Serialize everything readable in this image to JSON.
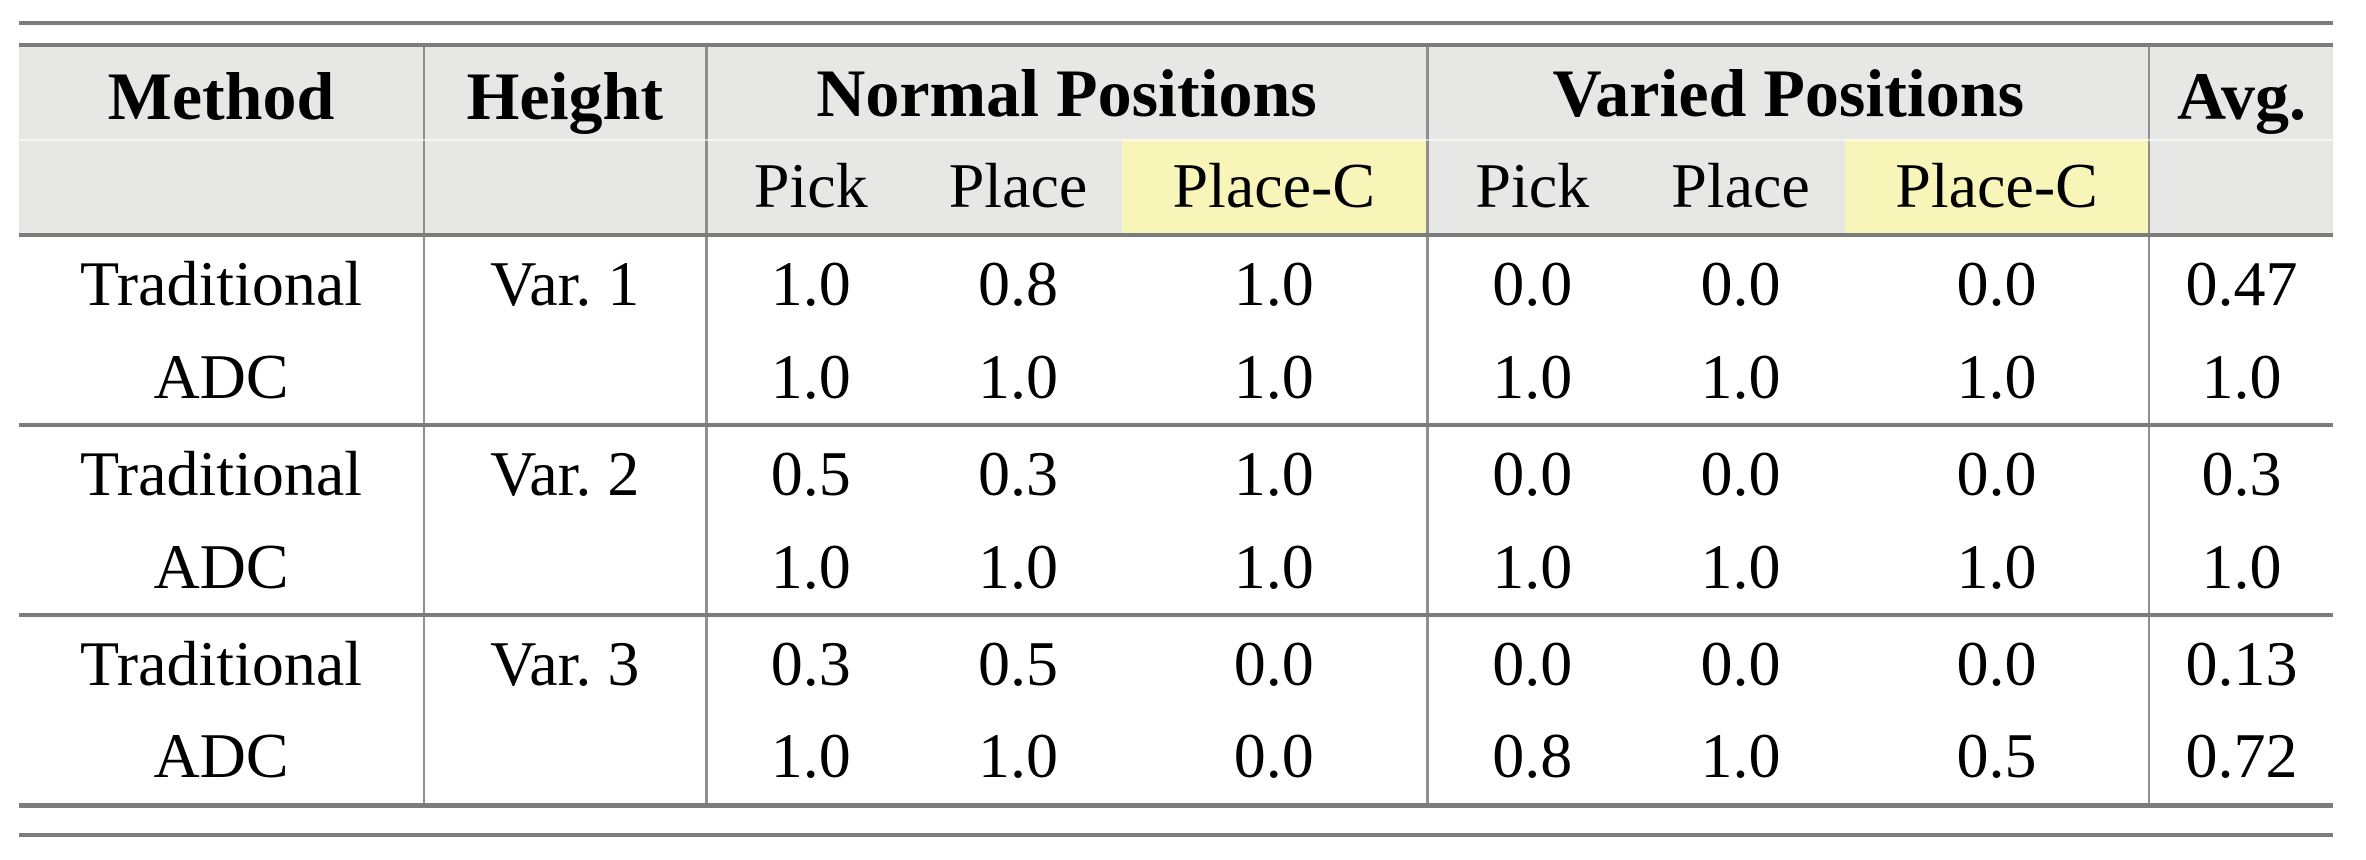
{
  "colors": {
    "header_bg": "#e7e7e6",
    "highlight_bg": "#f8f5b9",
    "rule": "#8f8f8f",
    "thick_rule": "#7c7c7c",
    "text": "#000000"
  },
  "table": {
    "headers": {
      "method": "Method",
      "height": "Height",
      "normal_group": "Normal Positions",
      "varied_group": "Varied Positions",
      "avg": "Avg.",
      "pick": "Pick",
      "place": "Place",
      "place_c": "Place-C"
    },
    "rows": [
      {
        "method": "Traditional",
        "height": "Var. 1",
        "normal": [
          "1.0",
          "0.8",
          "1.0"
        ],
        "varied": [
          "0.0",
          "0.0",
          "0.0"
        ],
        "avg": "0.47"
      },
      {
        "method": "ADC",
        "height": "",
        "normal": [
          "1.0",
          "1.0",
          "1.0"
        ],
        "varied": [
          "1.0",
          "1.0",
          "1.0"
        ],
        "avg": "1.0"
      },
      {
        "method": "Traditional",
        "height": "Var. 2",
        "normal": [
          "0.5",
          "0.3",
          "1.0"
        ],
        "varied": [
          "0.0",
          "0.0",
          "0.0"
        ],
        "avg": "0.3"
      },
      {
        "method": "ADC",
        "height": "",
        "normal": [
          "1.0",
          "1.0",
          "1.0"
        ],
        "varied": [
          "1.0",
          "1.0",
          "1.0"
        ],
        "avg": "1.0"
      },
      {
        "method": "Traditional",
        "height": "Var. 3",
        "normal": [
          "0.3",
          "0.5",
          "0.0"
        ],
        "varied": [
          "0.0",
          "0.0",
          "0.0"
        ],
        "avg": "0.13"
      },
      {
        "method": "ADC",
        "height": "",
        "normal": [
          "1.0",
          "1.0",
          "0.0"
        ],
        "varied": [
          "0.8",
          "1.0",
          "0.5"
        ],
        "avg": "0.72"
      }
    ]
  }
}
